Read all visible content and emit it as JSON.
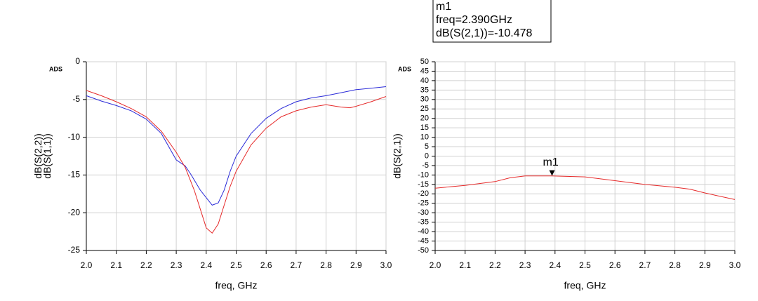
{
  "marker_box": {
    "lines": [
      "m1",
      "freq=2.390GHz",
      "dB(S(2,1))=-10.478"
    ]
  },
  "chart_data": [
    {
      "type": "line",
      "watermark": "ADS",
      "xlabel": "freq, GHz",
      "xlabel_color": "#000000",
      "grid": true,
      "xlim": [
        2.0,
        3.0
      ],
      "xticks": [
        {
          "value": 2,
          "label": "2.0"
        },
        2.1,
        2.2,
        2.3,
        2.4,
        2.5,
        2.6,
        2.7,
        2.8,
        2.9,
        {
          "value": 3,
          "label": "3.0"
        }
      ],
      "ylim": [
        -25,
        0
      ],
      "yticks": [
        0,
        -5,
        -10,
        -15,
        -20,
        -25
      ],
      "series": [
        {
          "name": "dB(S(2,2))",
          "color": "#2a2ad8",
          "x": [
            2.0,
            2.05,
            2.1,
            2.15,
            2.2,
            2.25,
            2.3,
            2.33,
            2.35,
            2.38,
            2.4,
            2.42,
            2.44,
            2.46,
            2.48,
            2.5,
            2.55,
            2.6,
            2.65,
            2.7,
            2.75,
            2.8,
            2.85,
            2.9,
            2.95,
            3.0
          ],
          "values": [
            -4.5,
            -5.2,
            -5.8,
            -6.5,
            -7.6,
            -9.5,
            -13.0,
            -13.8,
            -15.0,
            -17.0,
            -18.0,
            -19.0,
            -18.7,
            -17.0,
            -14.5,
            -12.5,
            -9.5,
            -7.5,
            -6.2,
            -5.3,
            -4.8,
            -4.5,
            -4.1,
            -3.7,
            -3.5,
            -3.3
          ]
        },
        {
          "name": "dB(S(1,1))",
          "color": "#e62a2a",
          "x": [
            2.0,
            2.05,
            2.1,
            2.15,
            2.2,
            2.25,
            2.3,
            2.33,
            2.36,
            2.38,
            2.4,
            2.42,
            2.44,
            2.46,
            2.48,
            2.5,
            2.55,
            2.6,
            2.65,
            2.7,
            2.75,
            2.8,
            2.85,
            2.88,
            2.9,
            2.95,
            3.0
          ],
          "values": [
            -3.8,
            -4.5,
            -5.3,
            -6.2,
            -7.3,
            -9.2,
            -12.0,
            -14.0,
            -17.0,
            -19.5,
            -22.0,
            -22.7,
            -21.5,
            -19.0,
            -16.5,
            -14.5,
            -11.0,
            -8.8,
            -7.3,
            -6.5,
            -6.0,
            -5.7,
            -6.0,
            -6.1,
            -5.9,
            -5.3,
            -4.6
          ]
        }
      ]
    },
    {
      "type": "line",
      "watermark": "ADS",
      "xlabel": "freq, GHz",
      "xlabel_color": "#e62a2a",
      "grid": true,
      "xlim": [
        2.0,
        3.0
      ],
      "xticks": [
        {
          "value": 2,
          "label": "2.0"
        },
        2.1,
        2.2,
        2.3,
        2.4,
        2.5,
        2.6,
        2.7,
        2.8,
        2.9,
        {
          "value": 3,
          "label": "3.0"
        }
      ],
      "ylim": [
        -50,
        50
      ],
      "yticks": [
        50,
        45,
        40,
        35,
        30,
        25,
        20,
        15,
        10,
        5,
        0,
        -5,
        -10,
        -15,
        -20,
        -25,
        -30,
        -35,
        -40,
        -45,
        -50
      ],
      "series": [
        {
          "name": "dB(S(2,1))",
          "color": "#e62a2a",
          "x": [
            2.0,
            2.1,
            2.2,
            2.25,
            2.3,
            2.39,
            2.5,
            2.6,
            2.7,
            2.8,
            2.85,
            2.9,
            3.0
          ],
          "values": [
            -17.0,
            -15.5,
            -13.5,
            -11.5,
            -10.5,
            -10.478,
            -11.0,
            -13.0,
            -15.0,
            -16.5,
            -17.5,
            -19.5,
            -23.0
          ]
        }
      ],
      "marker": {
        "label": "m1",
        "x": 2.39,
        "y": -10.478
      }
    }
  ]
}
